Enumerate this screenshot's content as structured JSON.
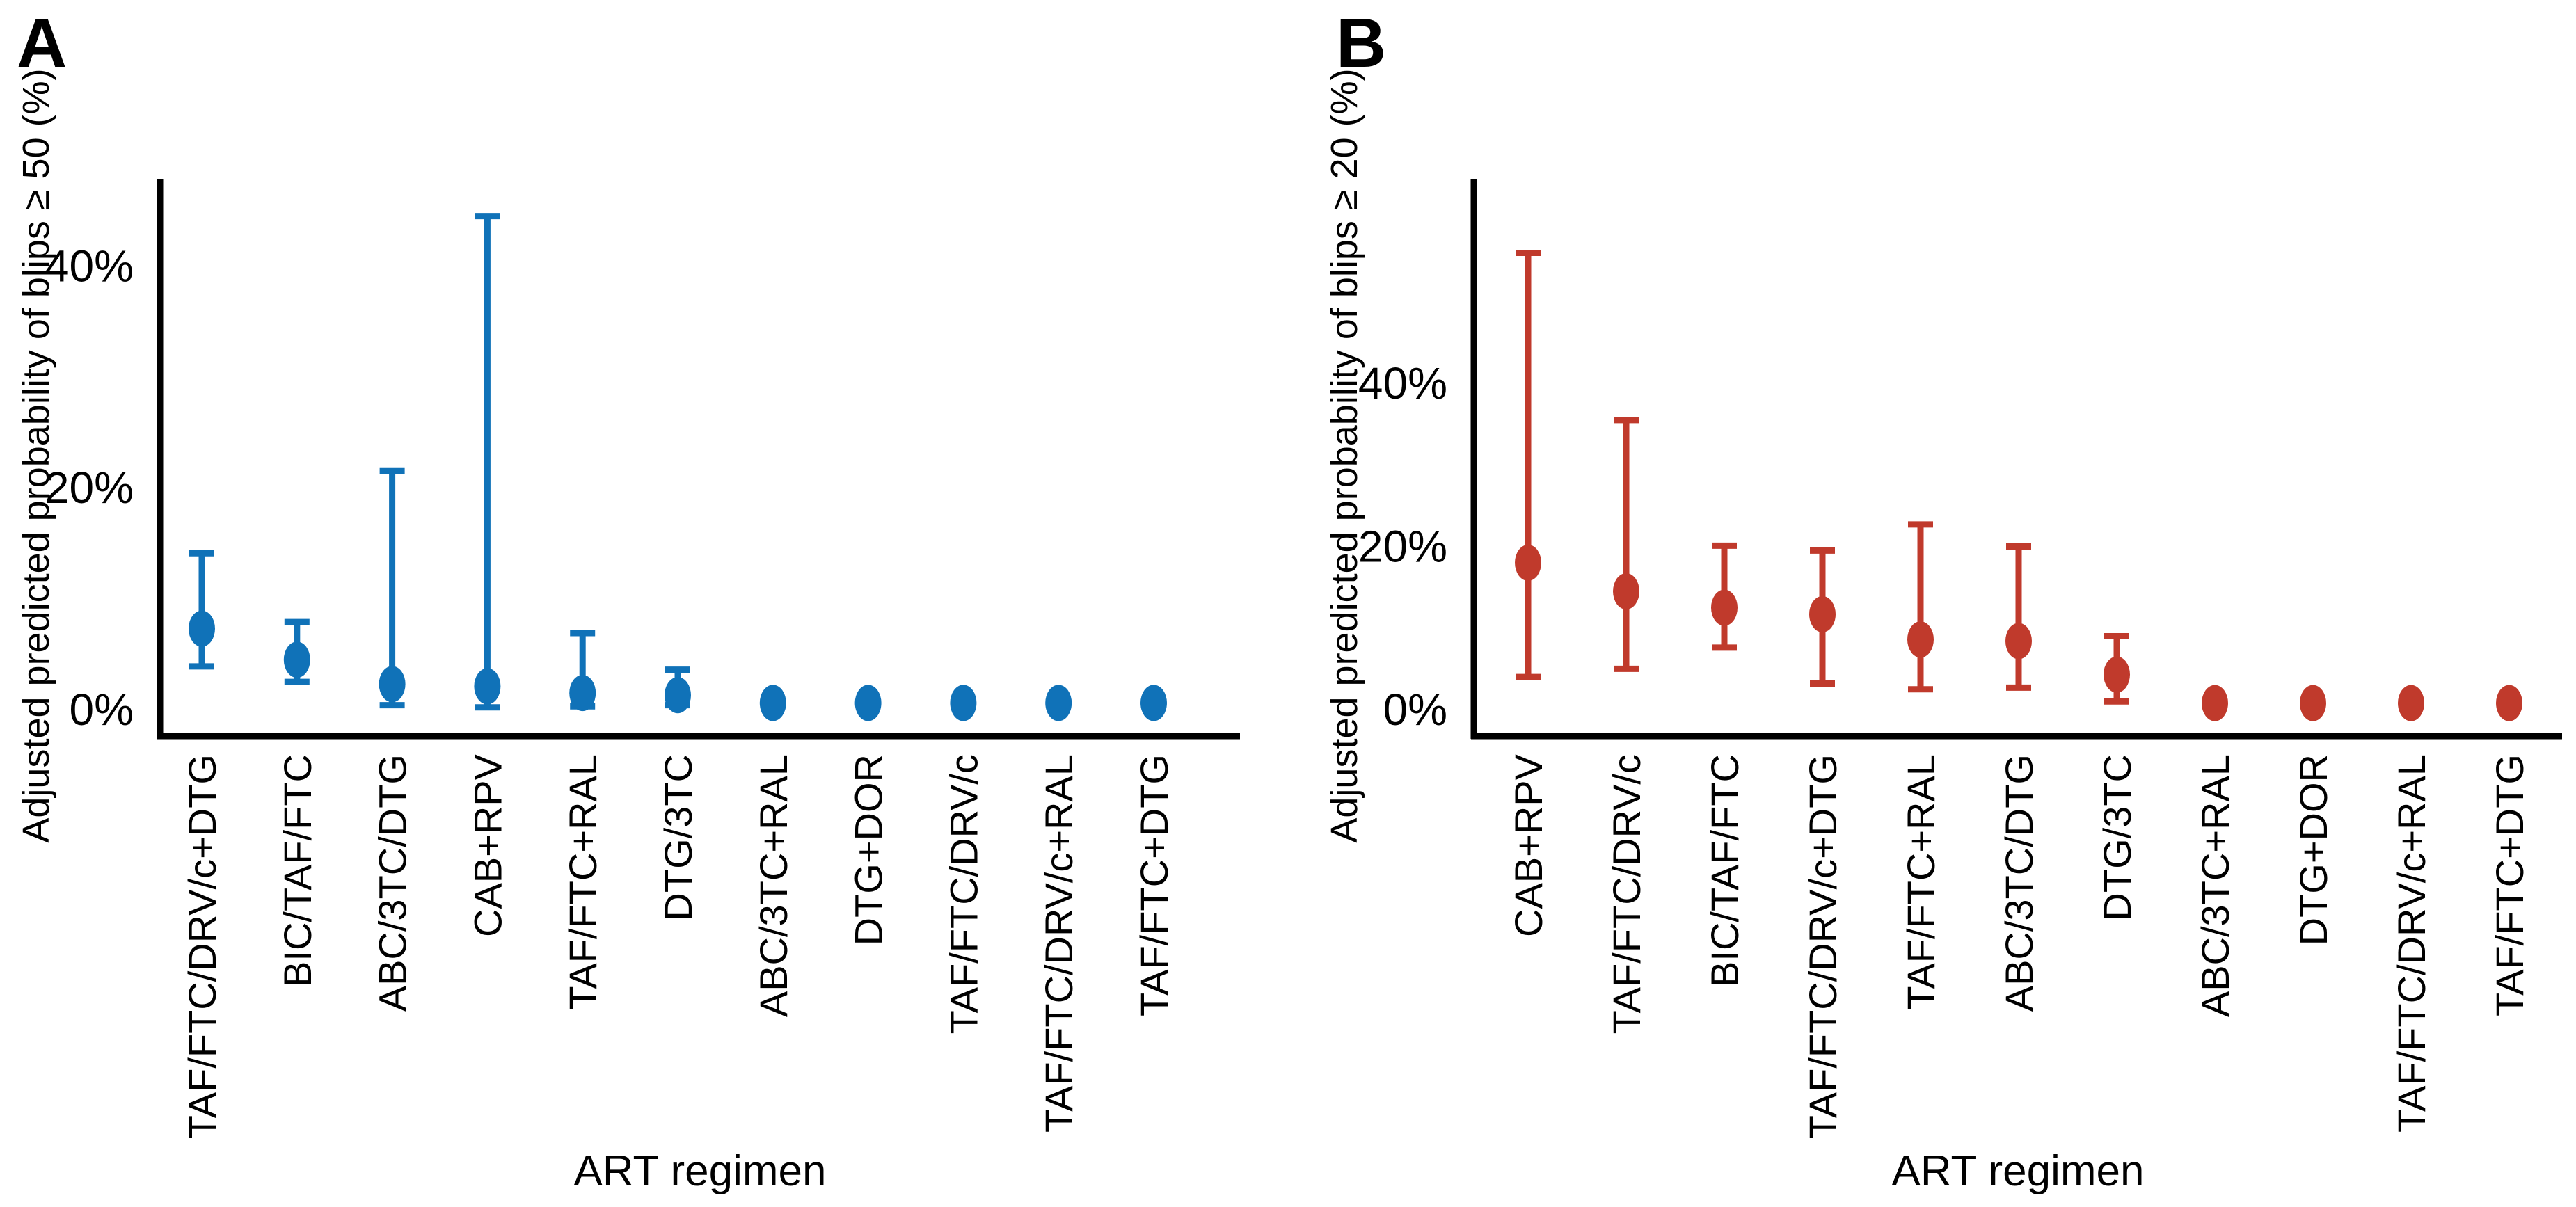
{
  "figure": {
    "background": "#ffffff",
    "axis_color": "#000000"
  },
  "chart_data": [
    {
      "type": "scatter",
      "panel_label": "A",
      "title": "",
      "xlabel": "ART regimen",
      "ylabel": "Adjusted predicted probability of blips ≥ 50 (%)",
      "point_color": "#1072b8",
      "legend": "none",
      "grid": false,
      "ylim": [
        0,
        47.8
      ],
      "yticks": [
        {
          "value": 0,
          "label": "0%"
        },
        {
          "value": 20,
          "label": "20%"
        },
        {
          "value": 40,
          "label": "40%"
        }
      ],
      "categories": [
        "TAF/FTC/DRV/c+DTG",
        "BIC/TAF/FTC",
        "ABC/3TC/DTG",
        "CAB+RPV",
        "TAF/FTC+RAL",
        "DTG/3TC",
        "ABC/3TC+RAL",
        "DTG+DOR",
        "TAF/FTC/DRV/c",
        "TAF/FTC/DRV/c+RAL",
        "TAF/FTC+DTG"
      ],
      "series": [
        {
          "name": "Adjusted predicted probability of blips ≥ 50 (%) with 95% CI",
          "points": [
            {
              "est": 7.3,
              "lo": 3.9,
              "hi": 14.1
            },
            {
              "est": 4.5,
              "lo": 2.5,
              "hi": 7.9
            },
            {
              "est": 2.3,
              "lo": 0.4,
              "hi": 21.5
            },
            {
              "est": 2.1,
              "lo": 0.2,
              "hi": 44.5
            },
            {
              "est": 1.5,
              "lo": 0.3,
              "hi": 6.9
            },
            {
              "est": 1.3,
              "lo": 0.4,
              "hi": 3.6
            },
            {
              "est": 0.6,
              "lo": null,
              "hi": null
            },
            {
              "est": 0.6,
              "lo": null,
              "hi": null
            },
            {
              "est": 0.6,
              "lo": null,
              "hi": null
            },
            {
              "est": 0.6,
              "lo": null,
              "hi": null
            },
            {
              "est": 0.6,
              "lo": null,
              "hi": null
            }
          ]
        }
      ]
    },
    {
      "type": "scatter",
      "panel_label": "B",
      "title": "",
      "xlabel": "ART regimen",
      "ylabel": "Adjusted predicted probability of blips ≥ 20 (%)",
      "point_color": "#c03a2c",
      "legend": "none",
      "grid": false,
      "ylim": [
        0,
        65
      ],
      "yticks": [
        {
          "value": 0,
          "label": "0%"
        },
        {
          "value": 20,
          "label": "20%"
        },
        {
          "value": 40,
          "label": "40%"
        }
      ],
      "categories": [
        "CAB+RPV",
        "TAF/FTC/DRV/c",
        "BIC/TAF/FTC",
        "TAF/FTC/DRV/c+DTG",
        "TAF/FTC+RAL",
        "ABC/3TC/DTG",
        "DTG/3TC",
        "ABC/3TC+RAL",
        "DTG+DOR",
        "TAF/FTC/DRV/c+RAL",
        "TAF/FTC+DTG"
      ],
      "series": [
        {
          "name": "Adjusted predicted probability of blips ≥ 20 (%) with 95% CI",
          "points": [
            {
              "est": 18.0,
              "lo": 4.0,
              "hi": 56.0
            },
            {
              "est": 14.5,
              "lo": 5.0,
              "hi": 35.5
            },
            {
              "est": 12.5,
              "lo": 7.6,
              "hi": 20.1
            },
            {
              "est": 11.7,
              "lo": 3.2,
              "hi": 19.5
            },
            {
              "est": 8.6,
              "lo": 2.5,
              "hi": 22.7
            },
            {
              "est": 8.4,
              "lo": 2.7,
              "hi": 20.0
            },
            {
              "est": 4.3,
              "lo": 1.0,
              "hi": 9.0
            },
            {
              "est": 0.8,
              "lo": null,
              "hi": null
            },
            {
              "est": 0.8,
              "lo": null,
              "hi": null
            },
            {
              "est": 0.8,
              "lo": null,
              "hi": null
            },
            {
              "est": 0.8,
              "lo": null,
              "hi": null
            }
          ]
        }
      ]
    }
  ]
}
